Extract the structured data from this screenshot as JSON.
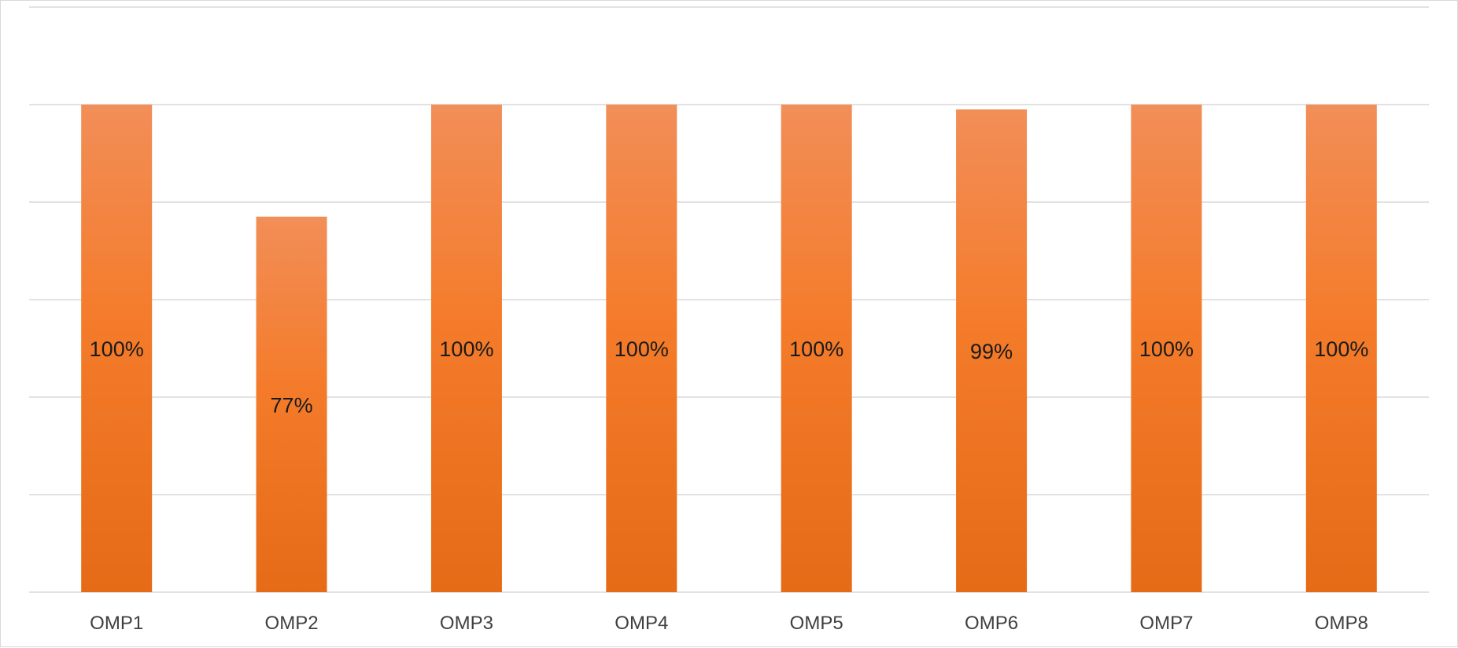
{
  "chart_data": {
    "type": "bar",
    "categories": [
      "OMP1",
      "OMP2",
      "OMP3",
      "OMP4",
      "OMP5",
      "OMP6",
      "OMP7",
      "OMP8"
    ],
    "values": [
      100,
      77,
      100,
      100,
      100,
      99,
      100,
      100
    ],
    "data_labels": [
      "100%",
      "77%",
      "100%",
      "100%",
      "100%",
      "99%",
      "100%",
      "100%"
    ],
    "title": "",
    "xlabel": "",
    "ylabel": "",
    "ylim": [
      0,
      120
    ],
    "y_grid_step": 20,
    "grid": true,
    "legend": "none",
    "colors": {
      "bar_top": "#f28e58",
      "bar_mid": "#f47b2a",
      "bar_bottom": "#e56b17",
      "grid": "#d9d9d9"
    }
  }
}
